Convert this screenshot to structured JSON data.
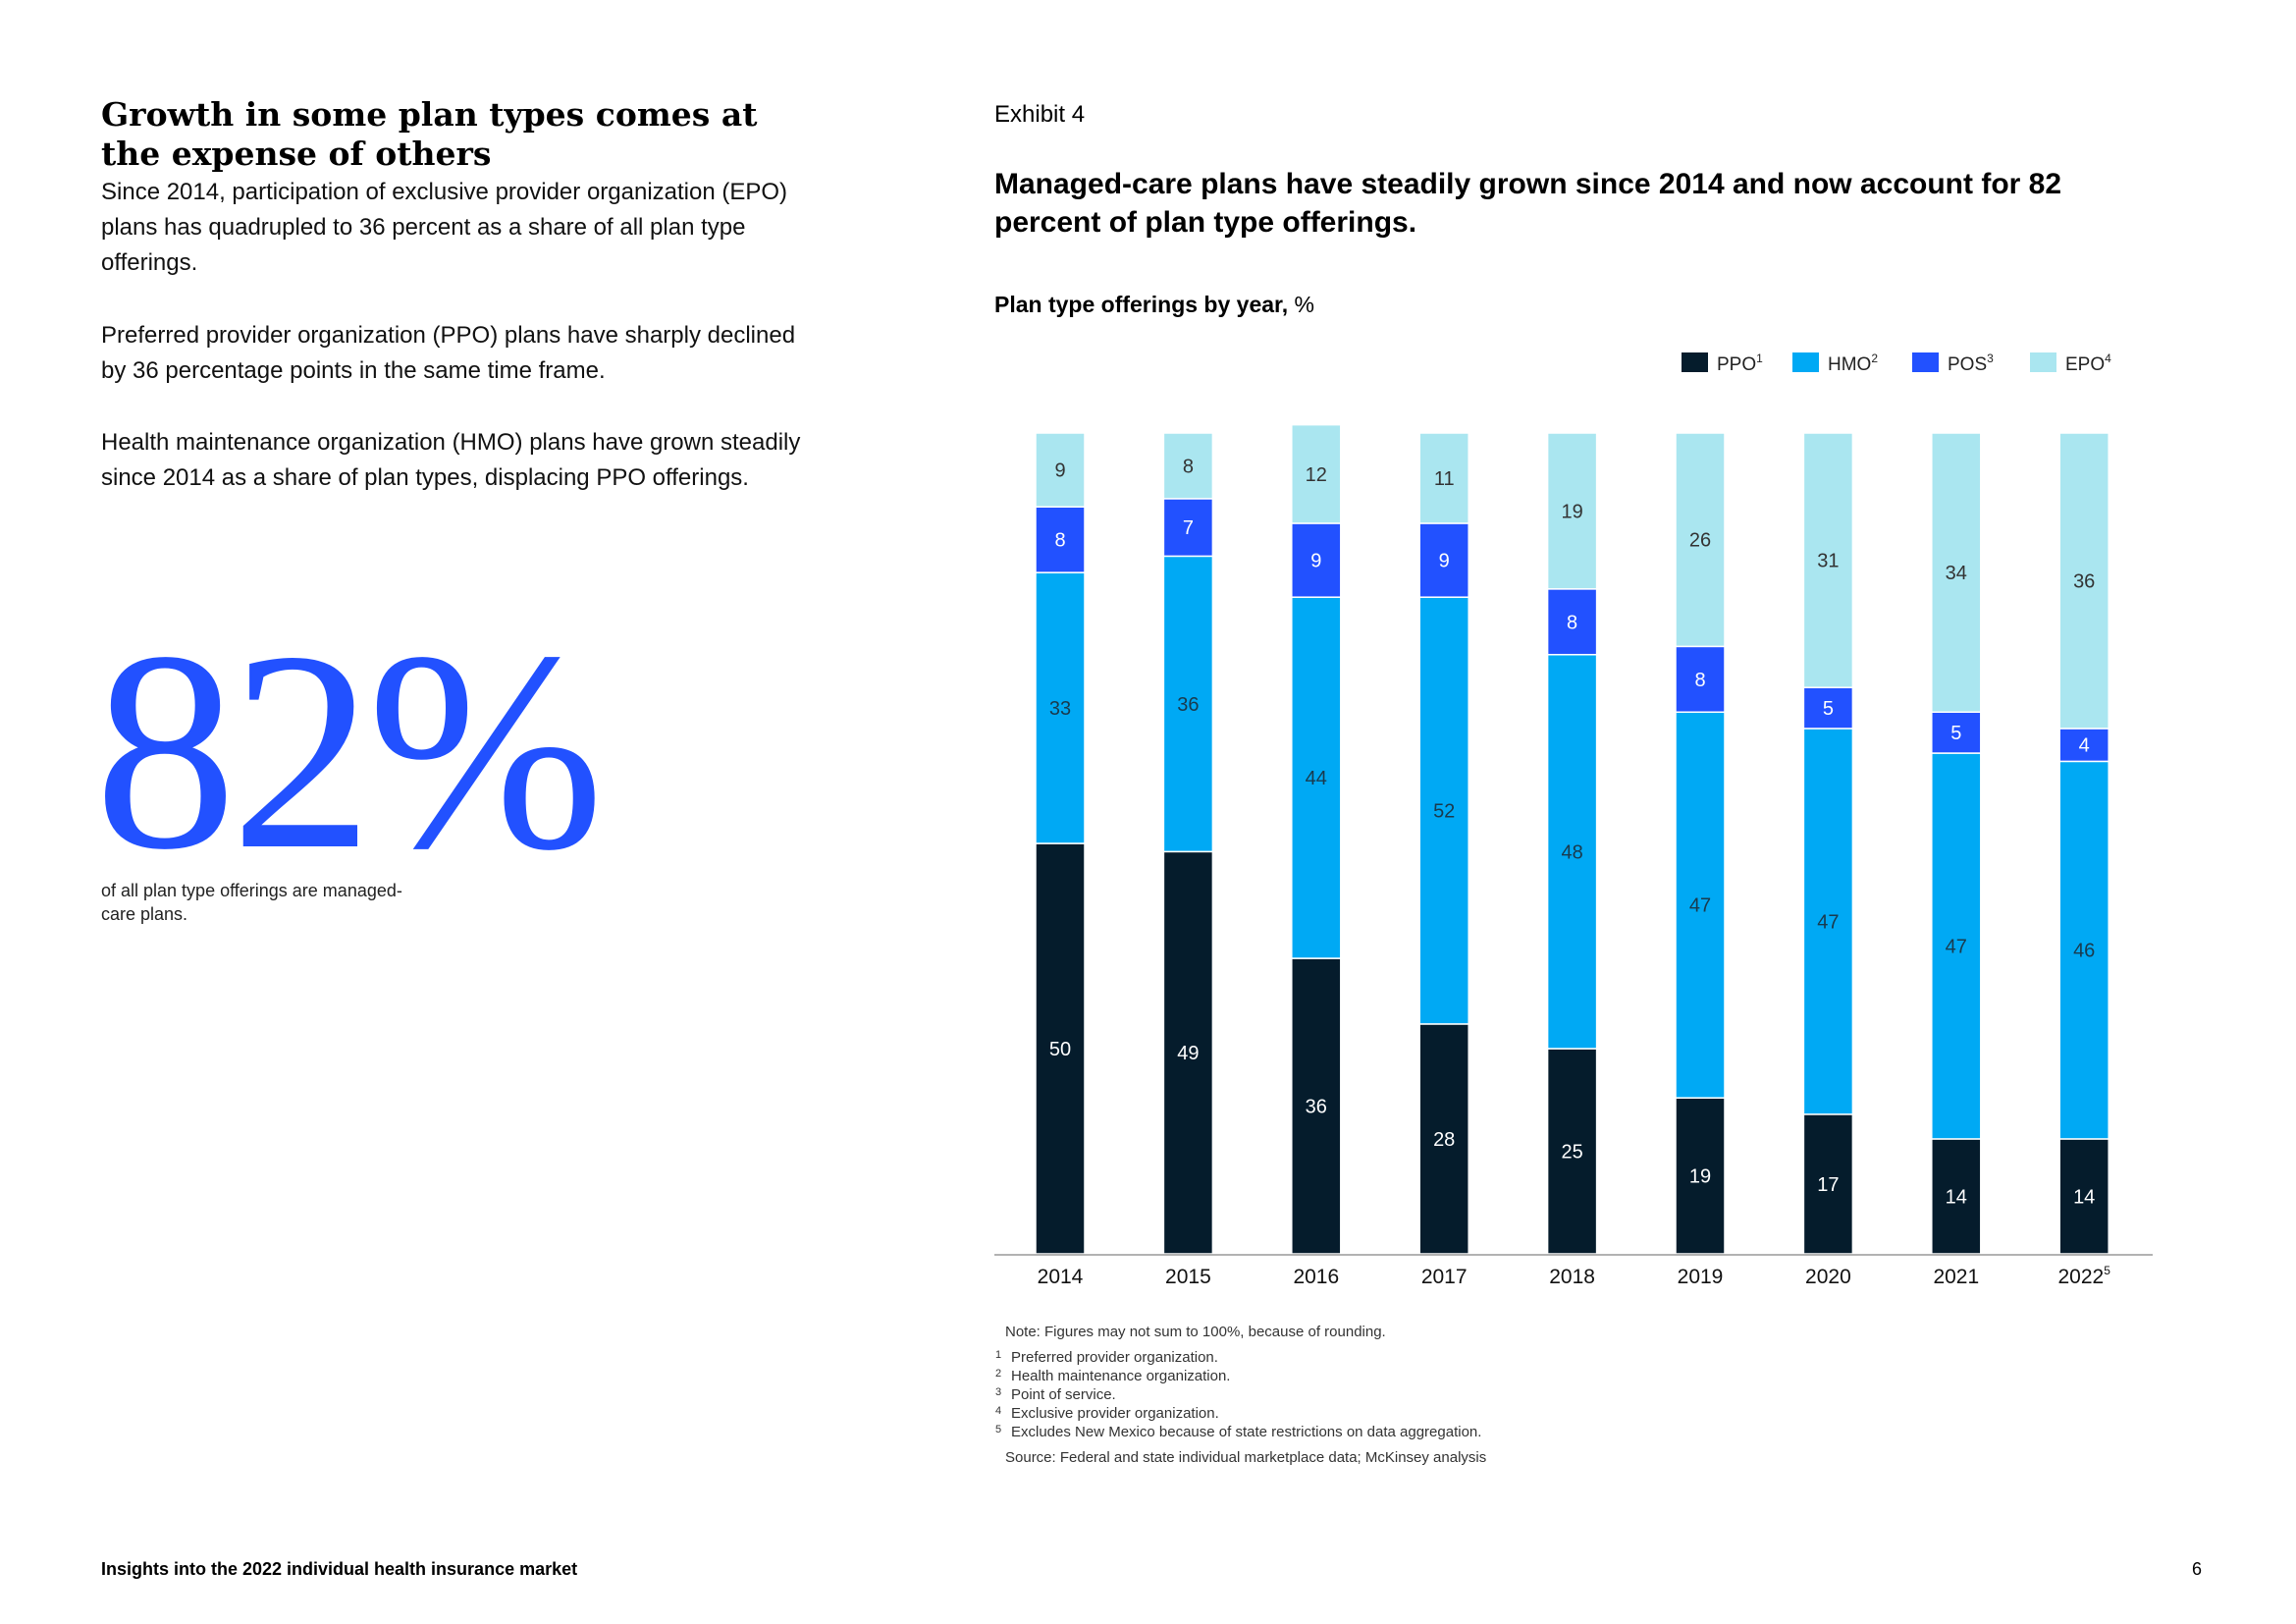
{
  "left": {
    "heading": "Growth in some plan types comes at the expense of others",
    "paragraphs": [
      "Since 2014, participation of exclusive provider organization (EPO) plans has quadrupled to 36 percent as a share of all plan type offerings.",
      "Preferred provider organization (PPO) plans have sharply declined by 36 percentage points in the same time frame.",
      "Health maintenance organization (HMO) plans have grown steadily since 2014 as a share of plan types, displacing PPO offerings."
    ],
    "big_stat": "82%",
    "big_stat_caption": "of all plan type offerings are managed-care plans."
  },
  "exhibit": {
    "label": "Exhibit 4",
    "title": "Managed-care plans have steadily grown since 2014 and now account for 82 percent of plan type offerings.",
    "subtitle_bold": "Plan type offerings by year,",
    "subtitle_unit": "%"
  },
  "colors": {
    "PPO": "#051c2c",
    "HMO": "#00a9f4",
    "POS": "#2251ff",
    "EPO": "#aae6f0",
    "blue_stat": "#2251ff"
  },
  "chart_data": {
    "type": "bar",
    "stacked": true,
    "title": "Plan type offerings by year, %",
    "categories": [
      "2014",
      "2015",
      "2016",
      "2017",
      "2018",
      "2019",
      "2020",
      "2021",
      "2022"
    ],
    "category_superscripts": [
      "",
      "",
      "",
      "",
      "",
      "",
      "",
      "",
      "5"
    ],
    "series": [
      {
        "name": "PPO",
        "sup": "1",
        "values": [
          50,
          49,
          36,
          28,
          25,
          19,
          17,
          14,
          14
        ]
      },
      {
        "name": "HMO",
        "sup": "2",
        "values": [
          33,
          36,
          44,
          52,
          48,
          47,
          47,
          47,
          46
        ]
      },
      {
        "name": "POS",
        "sup": "3",
        "values": [
          8,
          7,
          9,
          9,
          8,
          8,
          5,
          5,
          4
        ]
      },
      {
        "name": "EPO",
        "sup": "4",
        "values": [
          9,
          8,
          12,
          11,
          19,
          26,
          31,
          34,
          36
        ]
      }
    ],
    "ylim": [
      0,
      100
    ],
    "legend": "top-right",
    "grid": false
  },
  "notes": {
    "note": "Note: Figures may not sum to 100%, because of rounding.",
    "footnotes": [
      {
        "num": "1",
        "text": "Preferred provider organization."
      },
      {
        "num": "2",
        "text": "Health maintenance organization."
      },
      {
        "num": "3",
        "text": "Point of service."
      },
      {
        "num": "4",
        "text": "Exclusive provider organization."
      },
      {
        "num": "5",
        "text": "Excludes New Mexico because of state restrictions on data aggregation."
      }
    ],
    "source": "Source: Federal and state individual marketplace data; McKinsey analysis"
  },
  "footer": {
    "title": "Insights into the 2022 individual health insurance market",
    "page": "6"
  }
}
